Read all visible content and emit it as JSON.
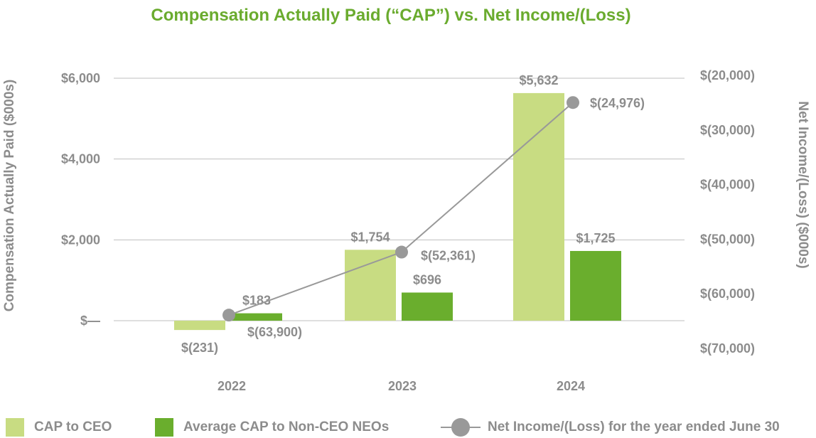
{
  "chart_data": {
    "type": "bar",
    "title": "Compensation Actually Paid (“CAP”) vs. Net Income/(Loss)",
    "categories": [
      "2022",
      "2023",
      "2024"
    ],
    "ylabel": "Compensation Actually Paid ($000s)",
    "y2label": "Net Income/(Loss) ($000s)",
    "ylim": [
      0,
      6000
    ],
    "y_ticks": [
      0,
      2000,
      4000,
      6000
    ],
    "y_tick_labels": [
      "$—",
      "$2,000",
      "$4,000",
      "$6,000"
    ],
    "y2lim": [
      -70000,
      -20000
    ],
    "y2_ticks": [
      -70000,
      -60000,
      -50000,
      -40000,
      -30000,
      -20000
    ],
    "y2_tick_labels": [
      "$(70,000)",
      "$(60,000)",
      "$(50,000)",
      "$(40,000)",
      "$(30,000)",
      "$(20,000)"
    ],
    "grid": true,
    "legend_position": "bottom",
    "series": [
      {
        "name": "CAP to CEO",
        "type": "bar",
        "axis": "left",
        "color": "#c8dc82",
        "values": [
          -231,
          1754,
          5632
        ],
        "labels": [
          "$(231)",
          "$1,754",
          "$5,632"
        ]
      },
      {
        "name": "Average CAP to Non-CEO NEOs",
        "type": "bar",
        "axis": "left",
        "color": "#6aae2d",
        "values": [
          183,
          696,
          1725
        ],
        "labels": [
          "$183",
          "$696",
          "$1,725"
        ]
      },
      {
        "name": "Net Income/(Loss) for the year ended June 30",
        "type": "line",
        "axis": "right",
        "color": "#999999",
        "values": [
          -63900,
          -52361,
          -24976
        ],
        "labels": [
          "$(63,900)",
          "$(52,361)",
          "$(24,976)"
        ]
      }
    ]
  }
}
